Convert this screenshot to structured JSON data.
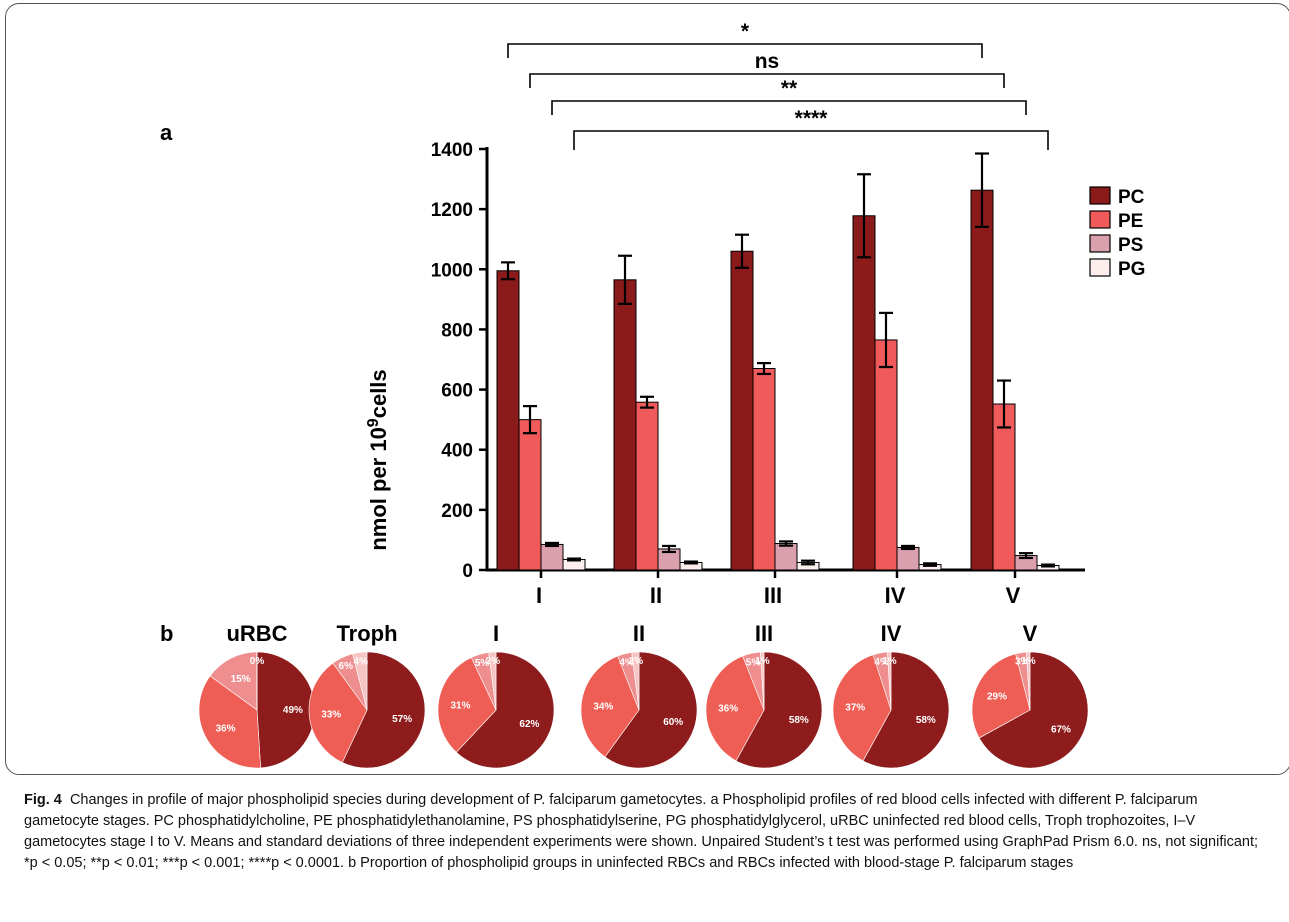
{
  "panel_a_label": "a",
  "panel_b_label": "b",
  "chart_data": [
    {
      "type": "bar",
      "ylabel_main": "nmol per 10",
      "ylabel_sup": "9",
      "ylabel_tail": "cells",
      "ylim": [
        0,
        1400
      ],
      "yticks": [
        0,
        200,
        400,
        600,
        800,
        1000,
        1200,
        1400
      ],
      "categories": [
        "I",
        "II",
        "III",
        "IV",
        "V"
      ],
      "legend_position": "top-right",
      "series": [
        {
          "name": "PC",
          "color": "#8b1a1a",
          "values": [
            995,
            965,
            1060,
            1178,
            1263
          ],
          "errors": [
            28,
            80,
            55,
            138,
            122
          ]
        },
        {
          "name": "PE",
          "color": "#f05a5a",
          "values": [
            500,
            558,
            670,
            765,
            552
          ],
          "errors": [
            45,
            18,
            18,
            90,
            78
          ]
        },
        {
          "name": "PS",
          "color": "#dba0ad",
          "values": [
            85,
            70,
            88,
            75,
            48
          ],
          "errors": [
            5,
            10,
            7,
            5,
            8
          ]
        },
        {
          "name": "PG",
          "color": "#fdeeee",
          "values": [
            35,
            25,
            25,
            18,
            15
          ],
          "errors": [
            3,
            3,
            6,
            4,
            3
          ]
        }
      ],
      "significance": [
        {
          "from": "I",
          "to": "V",
          "series_from": 0,
          "series_to": 0,
          "label": "*"
        },
        {
          "from": "I",
          "to": "V",
          "series_from": 1,
          "series_to": 1,
          "label": "ns"
        },
        {
          "from": "I",
          "to": "V",
          "series_from": 2,
          "series_to": 2,
          "label": "**"
        },
        {
          "from": "I",
          "to": "V",
          "series_from": 3,
          "series_to": 3,
          "label": "****"
        }
      ]
    },
    {
      "type": "pie",
      "slice_order": [
        "PC",
        "PE",
        "PS",
        "PG"
      ],
      "colors": [
        "#8e1c1c",
        "#ef5e55",
        "#ee8e8e",
        "#f7c4c4"
      ],
      "pies": [
        {
          "title": "uRBC",
          "values": [
            49,
            36,
            15,
            0
          ],
          "labels": [
            "49%",
            "36%",
            "15%",
            "0%"
          ]
        },
        {
          "title": "Troph",
          "values": [
            57,
            33,
            6,
            4
          ],
          "labels": [
            "57%",
            "33%",
            "6%",
            "4%"
          ]
        },
        {
          "title": "I",
          "values": [
            62,
            31,
            5,
            2
          ],
          "labels": [
            "62%",
            "31%",
            "5%",
            "2%"
          ]
        },
        {
          "title": "II",
          "values": [
            60,
            34,
            4,
            2
          ],
          "labels": [
            "60%",
            "34%",
            "4%",
            "2%"
          ]
        },
        {
          "title": "III",
          "values": [
            58,
            36,
            5,
            1
          ],
          "labels": [
            "58%",
            "36%",
            "5%",
            "1%"
          ]
        },
        {
          "title": "IV",
          "values": [
            58,
            37,
            4,
            1
          ],
          "labels": [
            "58%",
            "37%",
            "4%",
            "1%"
          ]
        },
        {
          "title": "V",
          "values": [
            67,
            29,
            3,
            1
          ],
          "labels": [
            "67%",
            "29%",
            "3%",
            "1%"
          ]
        }
      ]
    }
  ],
  "caption": {
    "lead": "Fig. 4",
    "text": "Changes in profile of major phospholipid species during development of P. falciparum gametocytes. a Phospholipid profiles of red blood cells infected with different P. falciparum gametocyte stages. PC phosphatidylcholine, PE phosphatidylethanolamine, PS phosphatidylserine, PG phosphatidylglycerol, uRBC uninfected red blood cells, Troph trophozoites, I–V gametocytes stage I to V. Means and standard deviations of three independent experiments were shown. Unpaired Student’s t test was performed using GraphPad Prism 6.0. ns, not significant; *p < 0.05; **p < 0.01; ***p < 0.001; ****p < 0.0001. b Proportion of phospholipid groups in uninfected RBCs and RBCs infected with blood-stage P. falciparum stages"
  }
}
